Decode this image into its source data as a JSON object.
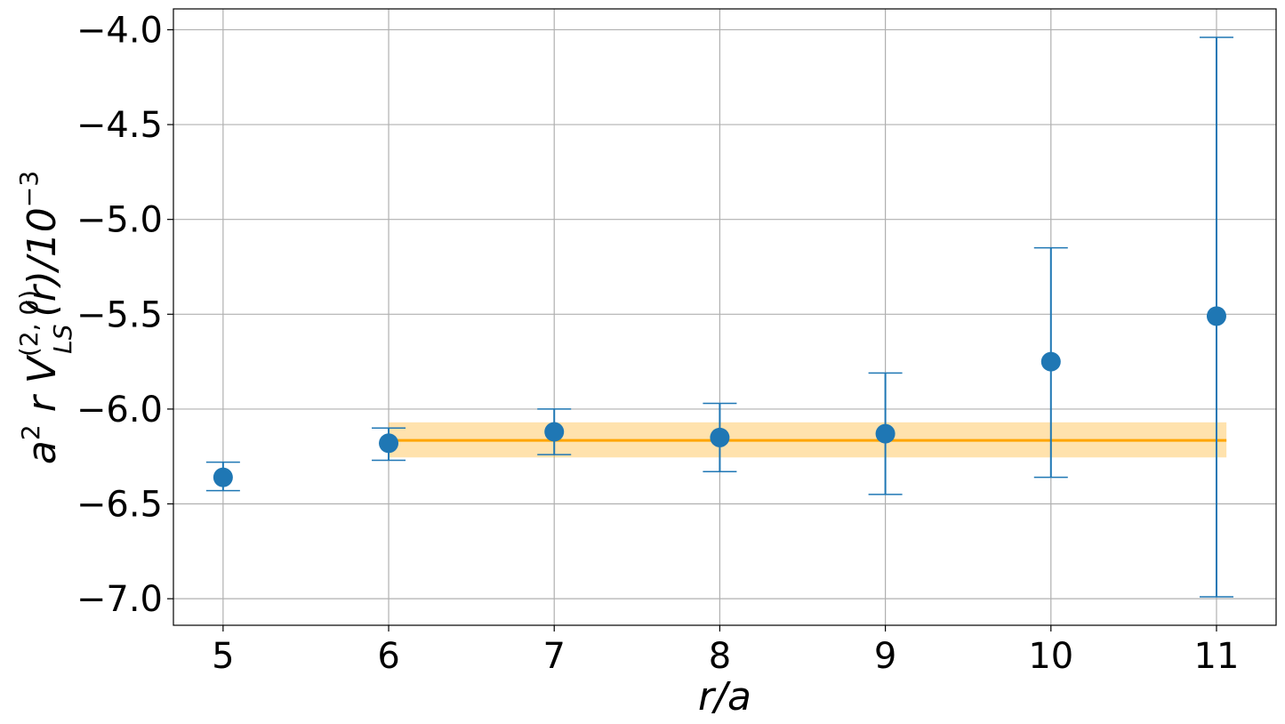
{
  "chart_data": {
    "type": "scatter",
    "title": "",
    "xlabel": "r/a",
    "ylabel": {
      "prefix": "a",
      "prefix_sup": "2",
      "mid": " r V",
      "sup": "(2, 0)",
      "sub": "LS",
      "suffix": "(r)/10",
      "suffix_sup": "−3"
    },
    "xlim": [
      4.7,
      11.36
    ],
    "ylim": [
      -7.14,
      -3.89
    ],
    "xticks": [
      5,
      6,
      7,
      8,
      9,
      10,
      11
    ],
    "xtick_labels": [
      "5",
      "6",
      "7",
      "8",
      "9",
      "10",
      "11"
    ],
    "yticks": [
      -7.0,
      -6.5,
      -6.0,
      -5.5,
      -5.0,
      -4.5,
      -4.0
    ],
    "ytick_labels": [
      "−7.0",
      "−6.5",
      "−6.0",
      "−5.5",
      "−5.0",
      "−4.5",
      "−4.0"
    ],
    "grid": true,
    "series": [
      {
        "color": "#1f77b4",
        "points": [
          {
            "x": 5,
            "y": -6.36,
            "ylow": -6.43,
            "yhigh": -6.28
          },
          {
            "x": 6,
            "y": -6.18,
            "ylow": -6.27,
            "yhigh": -6.1
          },
          {
            "x": 7,
            "y": -6.12,
            "ylow": -6.24,
            "yhigh": -6.0
          },
          {
            "x": 8,
            "y": -6.15,
            "ylow": -6.33,
            "yhigh": -5.97
          },
          {
            "x": 9,
            "y": -6.13,
            "ylow": -6.45,
            "yhigh": -5.81
          },
          {
            "x": 10,
            "y": -5.75,
            "ylow": -6.36,
            "yhigh": -5.15
          },
          {
            "x": 11,
            "y": -5.51,
            "ylow": -6.99,
            "yhigh": -4.04
          }
        ]
      }
    ],
    "fit": {
      "color": "#ffa500",
      "band_color": "#ffa500",
      "x_start": 6.0,
      "x_end": 11.06,
      "value": -6.165,
      "band_low": -6.255,
      "band_high": -6.07
    }
  }
}
